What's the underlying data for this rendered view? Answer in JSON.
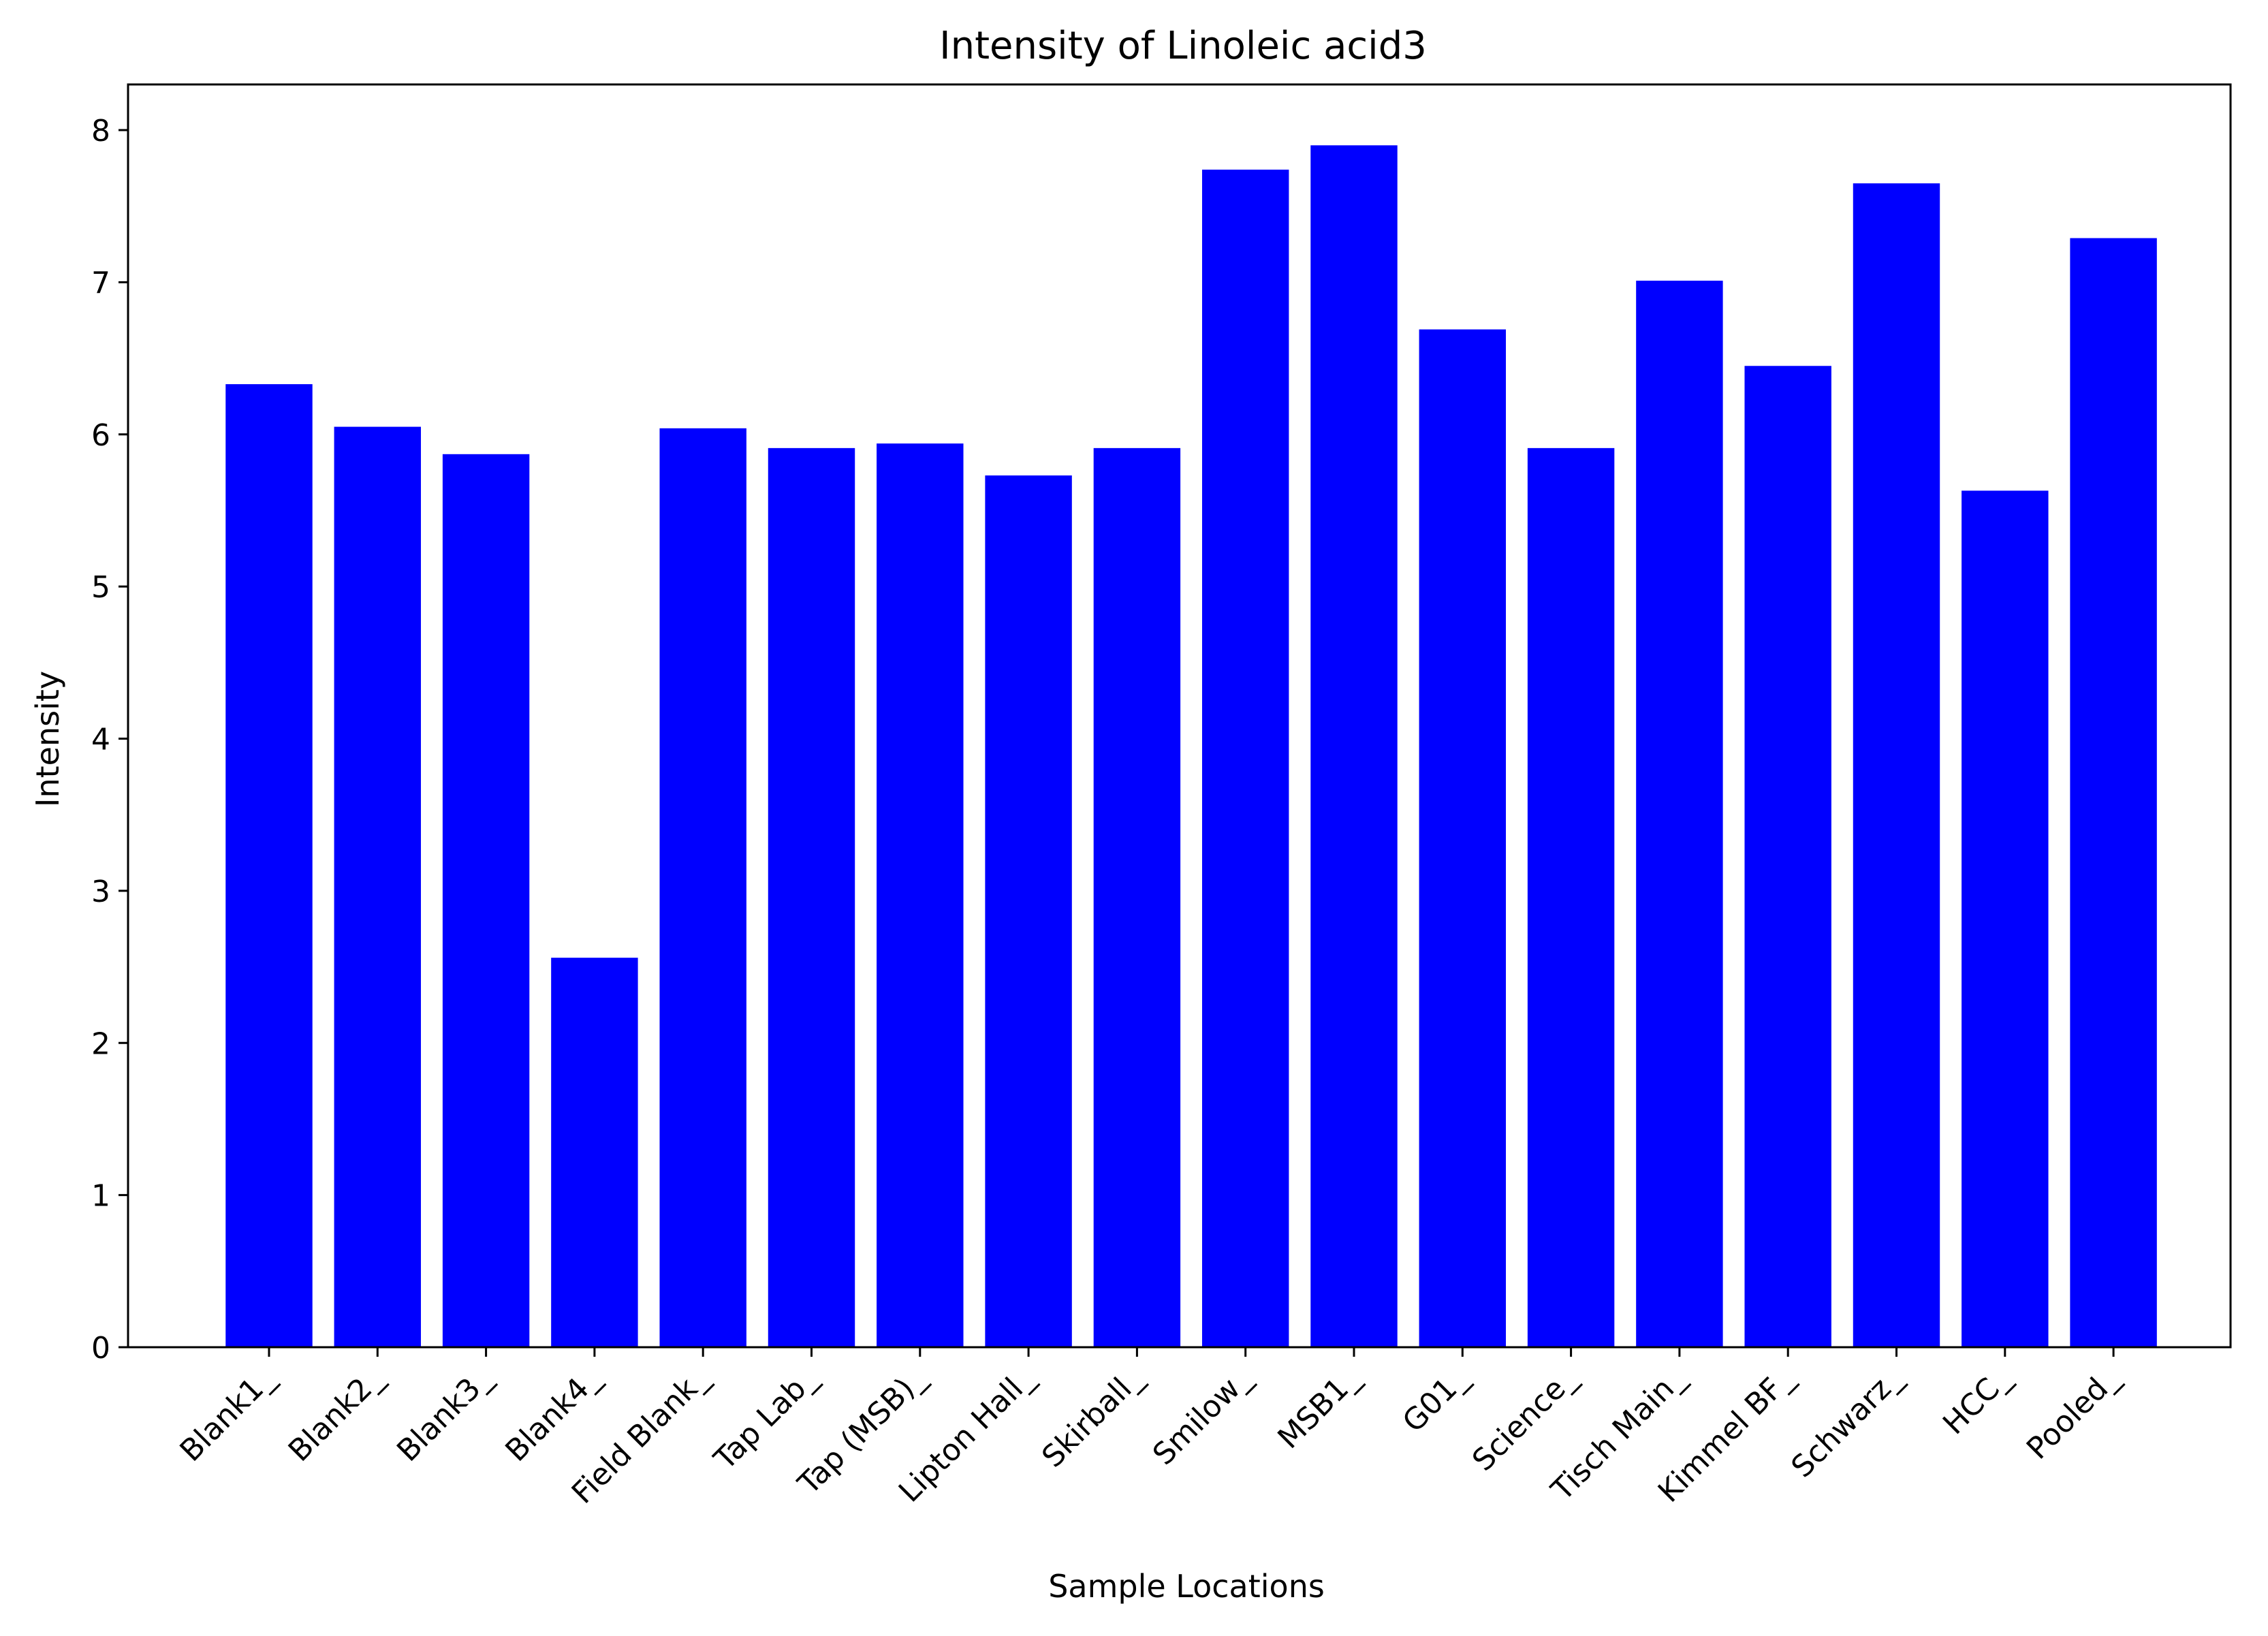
{
  "chart_data": {
    "type": "bar",
    "title": "Intensity of Linoleic acid3",
    "xlabel": "Sample Locations",
    "ylabel": "Intensity",
    "ylim": [
      0,
      8.3
    ],
    "yticks": [
      0,
      1,
      2,
      3,
      4,
      5,
      6,
      7,
      8
    ],
    "grid": false,
    "bar_color": "#0000ff",
    "categories": [
      "Blank1_",
      "Blank2_",
      "Blank3_",
      "Blank4_",
      "Field Blank_",
      "Tap Lab_",
      "Tap (MSB)_",
      "Lipton Hall_",
      "Skirball_",
      "Smilow_",
      "MSB1_",
      "G01_",
      "Science_",
      "Tisch Main_",
      "Kimmel BF_",
      "Schwarz_",
      "HCC_",
      "Pooled_"
    ],
    "values": [
      6.33,
      6.05,
      5.87,
      2.56,
      6.04,
      5.91,
      5.94,
      5.73,
      5.91,
      7.74,
      7.9,
      6.69,
      5.91,
      7.01,
      6.45,
      7.65,
      5.63,
      7.29
    ]
  }
}
